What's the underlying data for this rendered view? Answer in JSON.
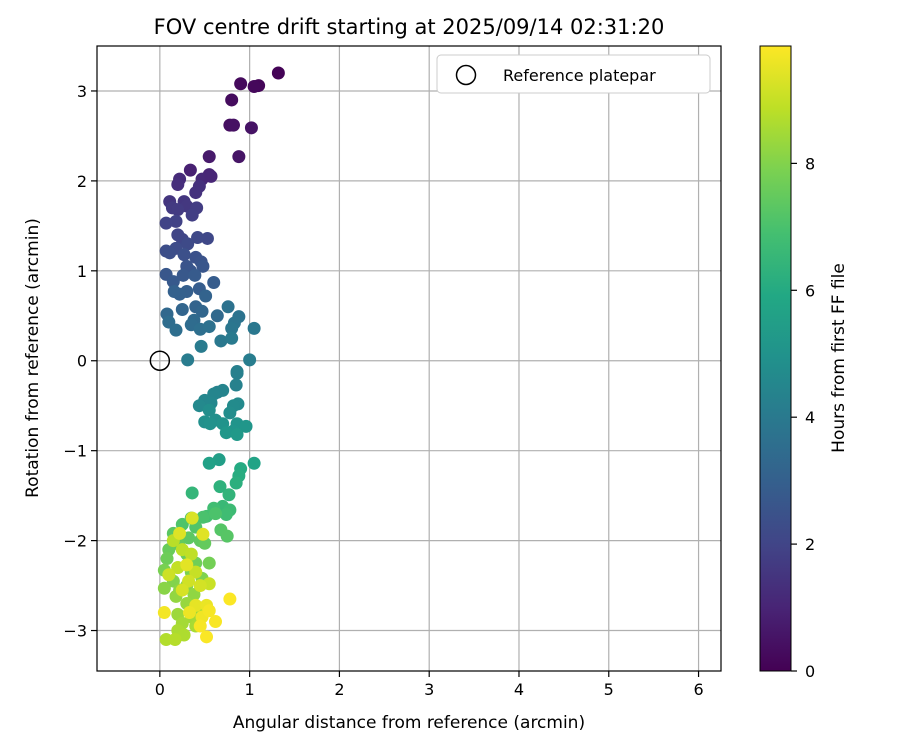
{
  "chart_data": {
    "type": "scatter",
    "title": "FOV centre drift starting at 2025/09/14 02:31:20",
    "xlabel": "Angular distance from reference (arcmin)",
    "ylabel": "Rotation from reference (arcmin)",
    "xlim": [
      -0.7,
      6.25
    ],
    "ylim": [
      -3.45,
      3.5
    ],
    "xticks": [
      0,
      1,
      2,
      3,
      4,
      5,
      6
    ],
    "yticks": [
      -3,
      -2,
      -1,
      0,
      1,
      2,
      3
    ],
    "grid": true,
    "legend_position": "top-right",
    "reference": {
      "label": "Reference platepar",
      "x": 0.0,
      "y": 0.0
    },
    "colorbar": {
      "label": "Hours from first FF file",
      "colormap": "viridis",
      "range": [
        0,
        9.85
      ],
      "ticks": [
        0,
        2,
        4,
        6,
        8
      ]
    },
    "points": [
      [
        1.32,
        3.2,
        0.05
      ],
      [
        1.1,
        3.06,
        0.15
      ],
      [
        1.05,
        3.05,
        0.2
      ],
      [
        0.9,
        3.08,
        0.25
      ],
      [
        0.8,
        2.9,
        0.3
      ],
      [
        0.78,
        2.62,
        0.4
      ],
      [
        0.82,
        2.62,
        0.45
      ],
      [
        1.02,
        2.59,
        0.5
      ],
      [
        0.88,
        2.27,
        0.55
      ],
      [
        0.55,
        2.27,
        0.7
      ],
      [
        0.34,
        2.12,
        0.9
      ],
      [
        0.55,
        2.07,
        1.0
      ],
      [
        0.47,
        2.02,
        1.1
      ],
      [
        0.57,
        2.05,
        1.05
      ],
      [
        0.22,
        2.02,
        1.2
      ],
      [
        0.2,
        1.96,
        1.3
      ],
      [
        0.44,
        1.94,
        1.35
      ],
      [
        0.4,
        1.87,
        1.4
      ],
      [
        0.11,
        1.77,
        1.5
      ],
      [
        0.27,
        1.77,
        1.55
      ],
      [
        0.3,
        1.72,
        1.6
      ],
      [
        0.14,
        1.7,
        1.65
      ],
      [
        0.2,
        1.68,
        1.7
      ],
      [
        0.41,
        1.7,
        1.75
      ],
      [
        0.36,
        1.62,
        1.8
      ],
      [
        0.18,
        1.55,
        1.9
      ],
      [
        0.07,
        1.53,
        1.95
      ],
      [
        0.2,
        1.4,
        2.0
      ],
      [
        0.25,
        1.35,
        2.05
      ],
      [
        0.53,
        1.36,
        2.1
      ],
      [
        0.42,
        1.37,
        2.15
      ],
      [
        0.31,
        1.3,
        2.2
      ],
      [
        0.18,
        1.25,
        2.25
      ],
      [
        0.07,
        1.22,
        2.3
      ],
      [
        0.11,
        1.2,
        2.35
      ],
      [
        0.27,
        1.18,
        2.4
      ],
      [
        0.4,
        1.15,
        2.45
      ],
      [
        0.46,
        1.1,
        2.5
      ],
      [
        0.3,
        1.05,
        2.55
      ],
      [
        0.34,
        1.0,
        2.6
      ],
      [
        0.48,
        1.05,
        2.62
      ],
      [
        0.07,
        0.96,
        2.65
      ],
      [
        0.26,
        0.95,
        2.7
      ],
      [
        0.15,
        0.88,
        2.75
      ],
      [
        0.39,
        0.95,
        2.8
      ],
      [
        0.6,
        0.87,
        2.85
      ],
      [
        0.44,
        0.8,
        2.9
      ],
      [
        0.3,
        0.77,
        2.95
      ],
      [
        0.22,
        0.74,
        3.0
      ],
      [
        0.16,
        0.77,
        3.05
      ],
      [
        0.51,
        0.72,
        3.1
      ],
      [
        0.4,
        0.6,
        3.15
      ],
      [
        0.25,
        0.57,
        3.2
      ],
      [
        0.47,
        0.55,
        3.25
      ],
      [
        0.08,
        0.52,
        3.3
      ],
      [
        0.64,
        0.5,
        3.35
      ],
      [
        0.38,
        0.45,
        3.4
      ],
      [
        0.35,
        0.4,
        3.45
      ],
      [
        0.1,
        0.43,
        3.5
      ],
      [
        0.18,
        0.34,
        3.55
      ],
      [
        0.45,
        0.35,
        3.6
      ],
      [
        0.55,
        0.38,
        3.65
      ],
      [
        0.76,
        0.6,
        3.7
      ],
      [
        0.88,
        0.49,
        3.75
      ],
      [
        0.83,
        0.42,
        3.8
      ],
      [
        0.8,
        0.36,
        3.85
      ],
      [
        1.05,
        0.36,
        3.9
      ],
      [
        0.68,
        0.22,
        3.95
      ],
      [
        0.8,
        0.25,
        4.0
      ],
      [
        0.46,
        0.16,
        4.05
      ],
      [
        0.31,
        0.01,
        4.1
      ],
      [
        1.0,
        0.01,
        4.15
      ],
      [
        0.86,
        -0.12,
        4.2
      ],
      [
        0.86,
        -0.14,
        4.25
      ],
      [
        0.85,
        -0.27,
        4.3
      ],
      [
        0.64,
        -0.35,
        4.35
      ],
      [
        0.7,
        -0.33,
        4.4
      ],
      [
        0.6,
        -0.37,
        4.45
      ],
      [
        0.5,
        -0.44,
        4.5
      ],
      [
        0.57,
        -0.47,
        4.55
      ],
      [
        0.44,
        -0.5,
        4.6
      ],
      [
        0.87,
        -0.48,
        4.65
      ],
      [
        0.82,
        -0.5,
        4.7
      ],
      [
        0.78,
        -0.58,
        4.75
      ],
      [
        0.55,
        -0.55,
        4.8
      ],
      [
        0.62,
        -0.66,
        4.85
      ],
      [
        0.5,
        -0.68,
        4.9
      ],
      [
        0.56,
        -0.7,
        4.95
      ],
      [
        0.7,
        -0.7,
        5.0
      ],
      [
        0.86,
        -0.7,
        5.05
      ],
      [
        0.82,
        -0.78,
        5.1
      ],
      [
        0.96,
        -0.73,
        5.15
      ],
      [
        0.74,
        -0.8,
        5.2
      ],
      [
        0.86,
        -0.82,
        5.25
      ],
      [
        0.66,
        -1.1,
        5.5
      ],
      [
        0.55,
        -1.14,
        5.6
      ],
      [
        1.05,
        -1.14,
        5.7
      ],
      [
        0.9,
        -1.2,
        6.0
      ],
      [
        0.88,
        -1.28,
        6.1
      ],
      [
        0.85,
        -1.36,
        6.2
      ],
      [
        0.67,
        -1.4,
        6.3
      ],
      [
        0.77,
        -1.49,
        6.4
      ],
      [
        0.36,
        -1.47,
        6.45
      ],
      [
        0.7,
        -1.62,
        6.6
      ],
      [
        0.78,
        -1.66,
        6.7
      ],
      [
        0.74,
        -1.71,
        6.75
      ],
      [
        0.6,
        -1.64,
        6.8
      ],
      [
        0.52,
        -1.73,
        6.9
      ],
      [
        0.35,
        -1.75,
        6.95
      ],
      [
        0.48,
        -1.74,
        7.0
      ],
      [
        0.62,
        -1.7,
        7.05
      ],
      [
        0.25,
        -1.82,
        7.1
      ],
      [
        0.4,
        -1.85,
        7.15
      ],
      [
        0.68,
        -1.88,
        7.2
      ],
      [
        0.75,
        -1.95,
        7.25
      ],
      [
        0.15,
        -1.92,
        7.3
      ],
      [
        0.32,
        -1.97,
        7.35
      ],
      [
        0.45,
        -2.0,
        7.4
      ],
      [
        0.21,
        -2.04,
        7.45
      ],
      [
        0.5,
        -2.03,
        7.5
      ],
      [
        0.1,
        -2.1,
        7.55
      ],
      [
        0.3,
        -2.15,
        7.6
      ],
      [
        0.08,
        -2.2,
        7.65
      ],
      [
        0.4,
        -2.25,
        7.7
      ],
      [
        0.55,
        -2.25,
        7.75
      ],
      [
        0.2,
        -2.3,
        7.8
      ],
      [
        0.05,
        -2.33,
        7.85
      ],
      [
        0.35,
        -2.35,
        7.9
      ],
      [
        0.47,
        -2.42,
        7.95
      ],
      [
        0.15,
        -2.45,
        8.0
      ],
      [
        0.3,
        -2.5,
        8.05
      ],
      [
        0.05,
        -2.53,
        8.1
      ],
      [
        0.22,
        -2.55,
        8.15
      ],
      [
        0.38,
        -2.6,
        8.2
      ],
      [
        0.18,
        -2.62,
        8.25
      ],
      [
        0.3,
        -2.7,
        8.3
      ],
      [
        0.45,
        -2.75,
        8.35
      ],
      [
        0.2,
        -2.82,
        8.4
      ],
      [
        0.35,
        -2.85,
        8.45
      ],
      [
        0.25,
        -2.92,
        8.5
      ],
      [
        0.4,
        -2.95,
        8.55
      ],
      [
        0.2,
        -3.0,
        8.6
      ],
      [
        0.27,
        -3.05,
        8.65
      ],
      [
        0.07,
        -3.1,
        8.7
      ],
      [
        0.17,
        -3.1,
        8.75
      ],
      [
        0.15,
        -2.0,
        8.8
      ],
      [
        0.25,
        -2.1,
        8.85
      ],
      [
        0.35,
        -2.15,
        8.9
      ],
      [
        0.2,
        -2.3,
        8.95
      ],
      [
        0.4,
        -2.35,
        9.0
      ],
      [
        0.55,
        -2.48,
        9.05
      ],
      [
        0.1,
        -2.38,
        9.1
      ],
      [
        0.32,
        -2.45,
        9.15
      ],
      [
        0.45,
        -2.5,
        9.2
      ],
      [
        0.25,
        -2.55,
        9.25
      ],
      [
        0.36,
        -1.75,
        9.3
      ],
      [
        0.22,
        -1.92,
        9.35
      ],
      [
        0.48,
        -1.93,
        9.4
      ],
      [
        0.3,
        -2.27,
        9.45
      ],
      [
        0.4,
        -2.72,
        9.5
      ],
      [
        0.52,
        -2.72,
        9.55
      ],
      [
        0.33,
        -2.8,
        9.6
      ],
      [
        0.47,
        -2.85,
        9.65
      ],
      [
        0.05,
        -2.8,
        9.7
      ],
      [
        0.55,
        -2.78,
        9.72
      ],
      [
        0.45,
        -2.95,
        9.75
      ],
      [
        0.62,
        -2.9,
        9.78
      ],
      [
        0.52,
        -3.07,
        9.8
      ],
      [
        0.78,
        -2.65,
        9.82
      ]
    ]
  }
}
